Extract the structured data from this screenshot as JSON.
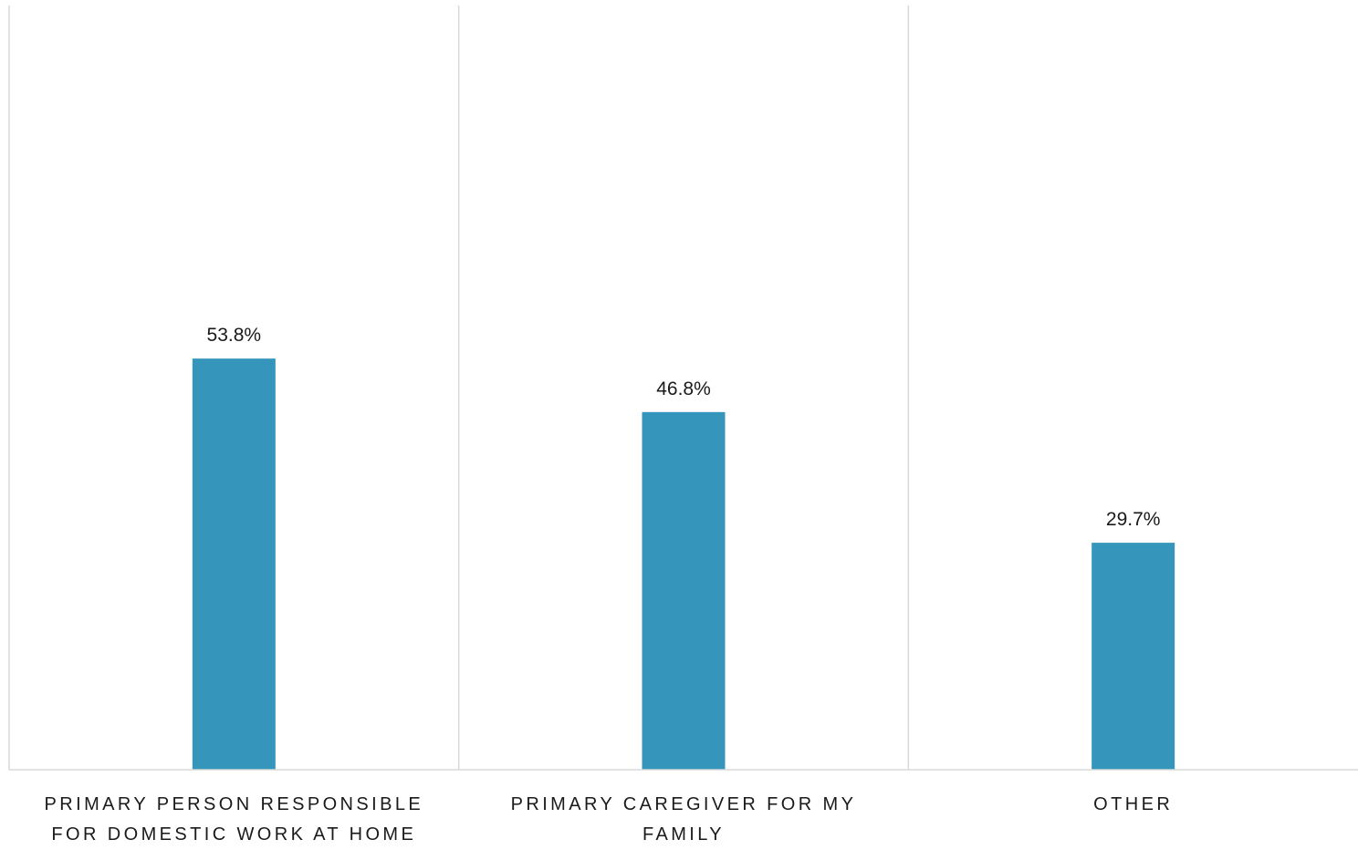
{
  "chart_data": {
    "type": "bar",
    "categories": [
      "PRIMARY PERSON RESPONSIBLE FOR DOMESTIC WORK AT HOME",
      "PRIMARY CAREGIVER FOR MY FAMILY",
      "OTHER"
    ],
    "values": [
      53.8,
      46.8,
      29.7
    ],
    "value_labels": [
      "53.8%",
      "46.8%",
      "29.7%"
    ],
    "title": "",
    "xlabel": "",
    "ylabel": "",
    "ylim": [
      0,
      100
    ],
    "grid": "vertical category separators",
    "legend": "none",
    "colors": {
      "bar": "#3595BA",
      "separator": "#D9D9D9",
      "axis": "#D9D9D9",
      "text": "#1A1A1A"
    }
  }
}
